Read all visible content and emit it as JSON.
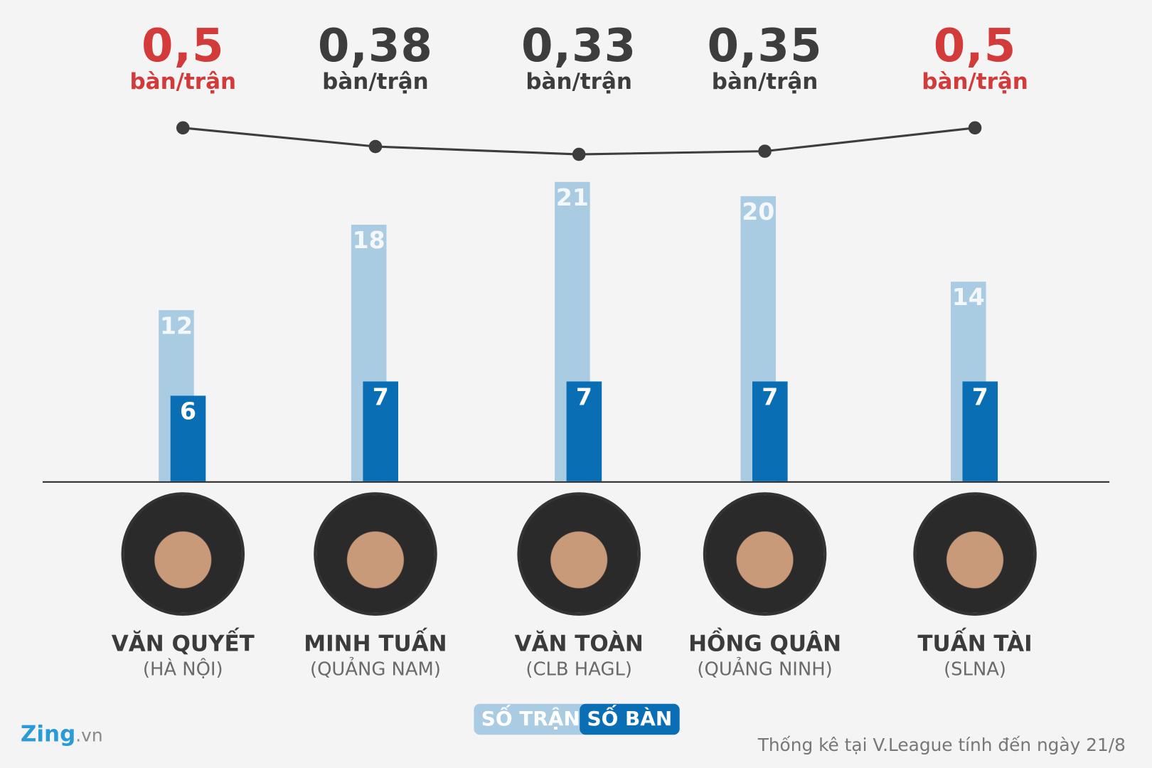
{
  "chart_data": {
    "type": "bar",
    "categories": [
      "VĂN QUYẾT",
      "MINH TUẤN",
      "VĂN TOÀN",
      "HỒNG QUÂN",
      "TUẤN TÀI"
    ],
    "teams": [
      "(HÀ NỘI)",
      "(QUẢNG NAM)",
      "(CLB HAGL)",
      "(QUẢNG NINH)",
      "(SLNA)"
    ],
    "series": [
      {
        "name": "SỐ TRẬN",
        "values": [
          12,
          18,
          21,
          20,
          14
        ],
        "color": "#aacce3"
      },
      {
        "name": "SỐ BÀN",
        "values": [
          6,
          7,
          7,
          7,
          7
        ],
        "color": "#0a6eb4"
      }
    ],
    "ratio_line": {
      "values": [
        0.5,
        0.38,
        0.33,
        0.35,
        0.5
      ],
      "labels": [
        "0,5",
        "0,38",
        "0,33",
        "0,35",
        "0,5"
      ],
      "unit": "bàn/trận",
      "highlight_color": "#d33a3a",
      "normal_color": "#3d3d3d",
      "highlighted": [
        true,
        false,
        false,
        false,
        true
      ]
    },
    "legend_placement": "bottom-center",
    "grid": false
  },
  "logo": {
    "main": "Zing",
    "suffix": ".vn"
  },
  "footer": "Thống kê tại V.League tính đến ngày 21/8"
}
